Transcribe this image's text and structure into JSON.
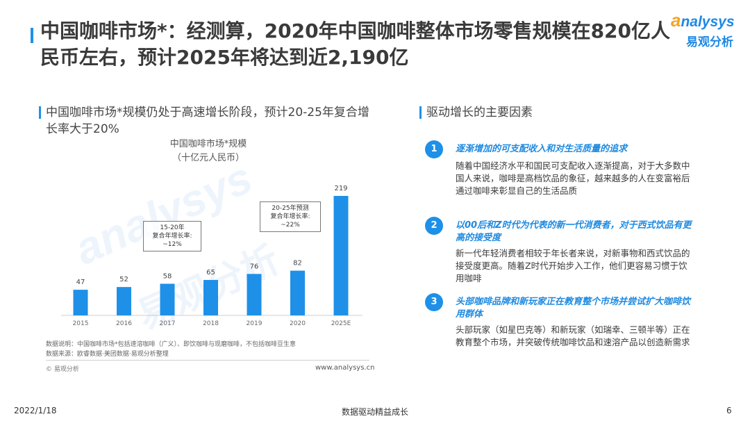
{
  "header": {
    "title": "中国咖啡市场*：经测算，2020年中国咖啡整体市场零售规模在820亿人民币左右，预计2025年将达到近2,190亿",
    "logo_en_initial": "a",
    "logo_en_rest": "nalysys",
    "logo_cn": "易观分析"
  },
  "left": {
    "heading": "中国咖啡市场*规模仍处于高速增长阶段，预计20-25年复合增长率大于20%",
    "chart_title": "中国咖啡市场*规模",
    "chart_unit": "（十亿元人民币）",
    "annotation_1": [
      "15-20年",
      "复合年增长率:",
      "~12%"
    ],
    "annotation_2": [
      "20-25年预测",
      "复合年增长率:",
      "~22%"
    ],
    "note_1": "数据说明：中国咖啡市场*包括速溶咖啡（广义）、即饮咖啡与现磨咖啡，不包括咖啡豆生意",
    "note_2": "数据来源：欧睿数据·美团数据·易观分析整理",
    "copyright": "© 易观分析",
    "website": "www.analysys.cn",
    "watermark_en": "analysys",
    "watermark_cn": "易观分析"
  },
  "chart_data": {
    "type": "bar",
    "title": "中国咖啡市场*规模",
    "ylabel": "（十亿元人民币）",
    "categories": [
      "2015",
      "2016",
      "2017",
      "2018",
      "2019",
      "2020",
      "2025E"
    ],
    "values": [
      47,
      52,
      58,
      65,
      76,
      82,
      219
    ],
    "ylim": [
      0,
      219
    ],
    "grid": false,
    "bar_color": "#1e90e8"
  },
  "right": {
    "heading": "驱动增长的主要因素",
    "factors": [
      {
        "num": "1",
        "heading": "逐渐增加的可支配收入和对生活质量的追求",
        "body": "随着中国经济水平和国民可支配收入逐渐提高，对于大多数中国人来说，咖啡是高档饮品的象征，越来越多的人在变富裕后通过咖啡来彰显自己的生活品质"
      },
      {
        "num": "2",
        "heading": "以00后和Z时代为代表的新一代消费者，对于西式饮品有更高的接受度",
        "body": "新一代年轻消费者相较于年长者来说，对新事物和西式饮品的接受度更高。随着Z时代开始步入工作，他们更容易习惯于饮用咖啡"
      },
      {
        "num": "3",
        "heading": "头部咖啡品牌和新玩家正在教育整个市场并尝试扩大咖啡饮用群体",
        "body": "头部玩家（如星巴克等）和新玩家（如瑞幸、三顿半等）正在教育整个市场，并突破传统咖啡饮品和速溶产品以创造新需求"
      }
    ]
  },
  "footer": {
    "date": "2022/1/18",
    "slogan": "数据驱动精益成长",
    "page": "6"
  }
}
